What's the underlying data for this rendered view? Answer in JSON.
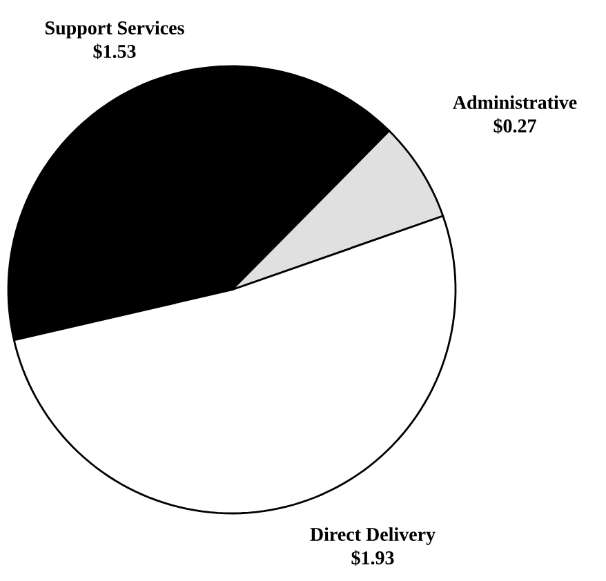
{
  "chart_data": {
    "type": "pie",
    "categories": [
      "Support Services",
      "Administrative",
      "Direct Delivery"
    ],
    "values": [
      1.53,
      0.27,
      1.93
    ],
    "value_labels": [
      "$1.53",
      "$0.27",
      "$1.93"
    ],
    "colors": [
      "#000000",
      "#e0e0e0",
      "#ffffff"
    ]
  }
}
